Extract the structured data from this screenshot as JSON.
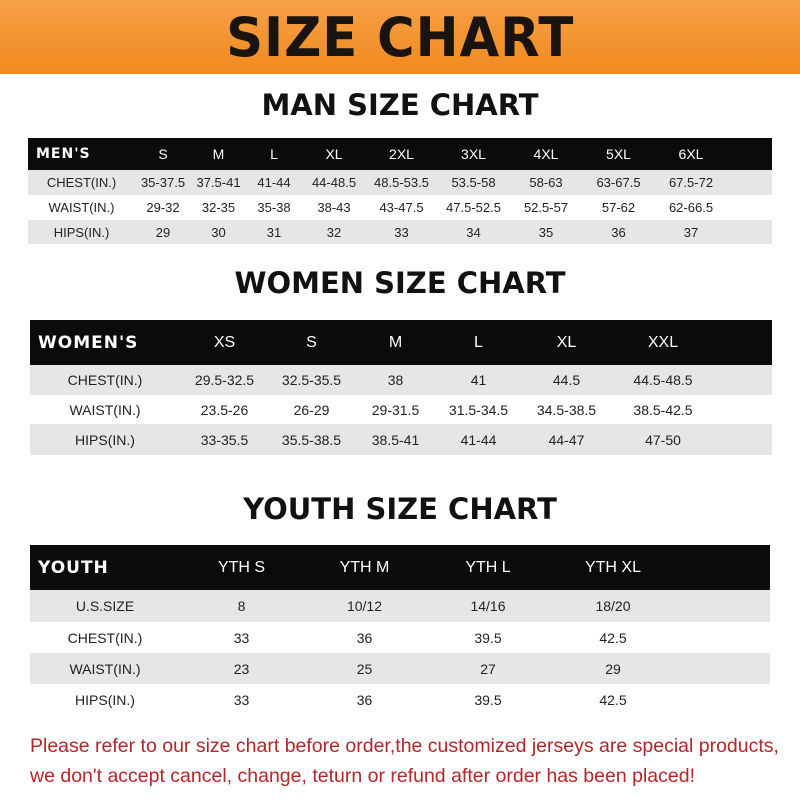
{
  "banner_title": "SIZE CHART",
  "men": {
    "title": "MAN SIZE CHART",
    "header": "MEN'S",
    "sizes": [
      "S",
      "M",
      "L",
      "XL",
      "2XL",
      "3XL",
      "4XL",
      "5XL",
      "6XL"
    ],
    "rows": [
      {
        "label": "CHEST(IN.)",
        "values": [
          "35-37.5",
          "37.5-41",
          "41-44",
          "44-48.5",
          "48.5-53.5",
          "53.5-58",
          "58-63",
          "63-67.5",
          "67.5-72"
        ]
      },
      {
        "label": "WAIST(IN.)",
        "values": [
          "29-32",
          "32-35",
          "35-38",
          "38-43",
          "43-47.5",
          "47.5-52.5",
          "52.5-57",
          "57-62",
          "62-66.5"
        ]
      },
      {
        "label": "HIPS(IN.)",
        "values": [
          "29",
          "30",
          "31",
          "32",
          "33",
          "34",
          "35",
          "36",
          "37"
        ]
      }
    ]
  },
  "women": {
    "title": "WOMEN SIZE CHART",
    "header": "WOMEN'S",
    "sizes": [
      "XS",
      "S",
      "M",
      "L",
      "XL",
      "XXL"
    ],
    "rows": [
      {
        "label": "CHEST(IN.)",
        "values": [
          "29.5-32.5",
          "32.5-35.5",
          "38",
          "41",
          "44.5",
          "44.5-48.5"
        ]
      },
      {
        "label": "WAIST(IN.)",
        "values": [
          "23.5-26",
          "26-29",
          "29-31.5",
          "31.5-34.5",
          "34.5-38.5",
          "38.5-42.5"
        ]
      },
      {
        "label": "HIPS(IN.)",
        "values": [
          "33-35.5",
          "35.5-38.5",
          "38.5-41",
          "41-44",
          "44-47",
          "47-50"
        ]
      }
    ]
  },
  "youth": {
    "title": "YOUTH SIZE CHART",
    "header": "YOUTH",
    "sizes": [
      "YTH S",
      "YTH M",
      "YTH L",
      "YTH XL"
    ],
    "rows": [
      {
        "label": "U.S.SIZE",
        "values": [
          "8",
          "10/12",
          "14/16",
          "18/20"
        ]
      },
      {
        "label": "CHEST(IN.)",
        "values": [
          "33",
          "36",
          "39.5",
          "42.5"
        ]
      },
      {
        "label": "WAIST(IN.)",
        "values": [
          "23",
          "25",
          "27",
          "29"
        ]
      },
      {
        "label": "HIPS(IN.)",
        "values": [
          "33",
          "36",
          "39.5",
          "42.5"
        ]
      }
    ]
  },
  "notice": {
    "line1": "Please refer to our size chart before order,the customized jerseys are special products,",
    "line2": "we don't accept cancel, change, teturn or refund after order has been placed!"
  },
  "colors": {
    "banner": "#f08a1e",
    "header_bg": "#0c0a0a",
    "row_alt": "#e6e6e6",
    "notice": "#b3262a"
  }
}
